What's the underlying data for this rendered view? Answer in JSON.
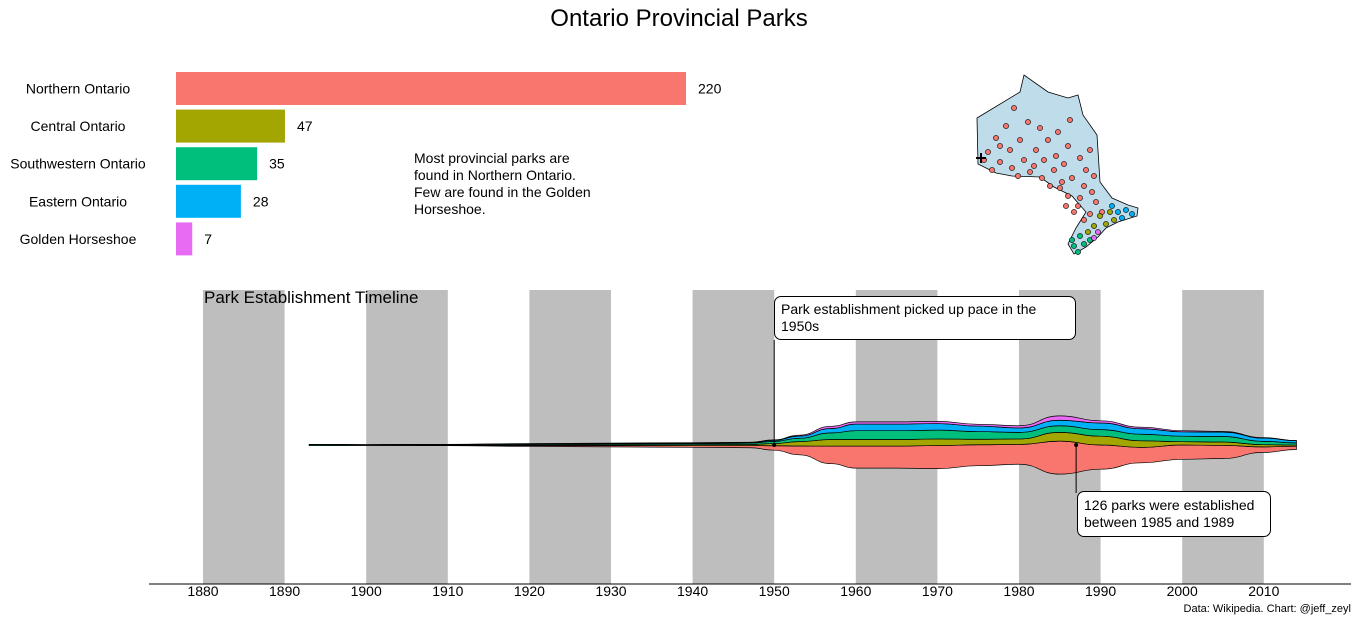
{
  "title": "Ontario Provincial Parks",
  "chart_data": [
    {
      "type": "bar",
      "orientation": "horizontal",
      "categories": [
        "Northern Ontario",
        "Central Ontario",
        "Southwestern Ontario",
        "Eastern Ontario",
        "Golden Horseshoe"
      ],
      "values": [
        220,
        47,
        35,
        28,
        7
      ],
      "colors": [
        "#F8766D",
        "#A3A500",
        "#00BF7D",
        "#00B0F6",
        "#E76BF3"
      ],
      "annotation": "Most provincial parks are found in Northern Ontario. Few are found in the Golden Horseshoe."
    },
    {
      "type": "area",
      "subtype": "streamgraph",
      "title": "Park Establishment Timeline",
      "x_ticks": [
        "1880",
        "1890",
        "1900",
        "1910",
        "1920",
        "1930",
        "1940",
        "1950",
        "1960",
        "1970",
        "1980",
        "1990",
        "2000",
        "2010"
      ],
      "xlim": [
        1873.5,
        2023.5
      ],
      "shaded_decades": [
        1880,
        1900,
        1920,
        1940,
        1960,
        1980,
        2000
      ],
      "x": [
        1893,
        1900,
        1910,
        1920,
        1930,
        1940,
        1947,
        1950,
        1953,
        1957,
        1960,
        1965,
        1970,
        1975,
        1980,
        1985,
        1990,
        1995,
        2000,
        2005,
        2010,
        2014
      ],
      "series": [
        {
          "name": "Northern Ontario",
          "color": "#F8766D",
          "values": [
            0,
            0,
            0.1,
            0.4,
            0.6,
            0.8,
            1,
            2,
            4,
            8,
            10,
            10,
            10.5,
            9.5,
            9,
            15,
            11,
            7,
            6.5,
            6,
            2.5,
            1.5
          ]
        },
        {
          "name": "Central Ontario",
          "color": "#A3A500",
          "values": [
            0,
            0,
            0.1,
            0.2,
            0.3,
            0.4,
            0.5,
            1,
            2,
            3,
            3,
            3,
            3,
            2.5,
            2.5,
            4,
            4,
            3,
            1.5,
            1.5,
            1,
            0.5
          ]
        },
        {
          "name": "Southwestern Ontario",
          "color": "#00BF7D",
          "values": [
            0.6,
            0.3,
            0.3,
            0.4,
            0.5,
            0.5,
            0.6,
            1,
            1.5,
            3,
            4,
            4,
            4,
            3.5,
            3,
            3,
            3,
            3,
            2.5,
            2.5,
            1.5,
            1
          ]
        },
        {
          "name": "Eastern Ontario",
          "color": "#00B0F6",
          "values": [
            0,
            0,
            0.1,
            0.2,
            0.2,
            0.3,
            0.3,
            0.5,
            1,
            2,
            3,
            3,
            3,
            2.5,
            2,
            2.5,
            3,
            2.5,
            2,
            2,
            1.5,
            1
          ]
        },
        {
          "name": "Golden Horseshoe",
          "color": "#E76BF3",
          "values": [
            0,
            0,
            0,
            0.1,
            0.1,
            0.1,
            0.1,
            0.2,
            0.4,
            1,
            1,
            1,
            1,
            0.8,
            1,
            2,
            1,
            0.7,
            0.5,
            0.3,
            0.2,
            0.1
          ]
        }
      ],
      "annotations": [
        {
          "x": 1950,
          "text": "Park establishment picked up pace in the 1950s"
        },
        {
          "x": 1987,
          "text": "126 parks were established between 1985 and 1989"
        }
      ]
    }
  ],
  "map": {
    "name": "ontario-map",
    "fill": "#BFDCEB",
    "point_colors": [
      "#F8766D",
      "#A3A500",
      "#00BF7D",
      "#00B0F6",
      "#E76BF3"
    ]
  },
  "caption": "Data: Wikipedia. Chart: @jeff_zeyl"
}
